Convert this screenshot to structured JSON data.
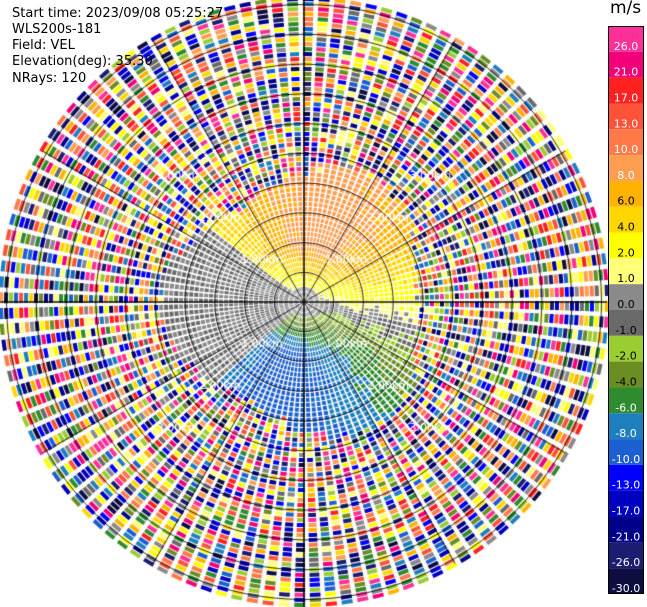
{
  "header": {
    "start_time": "Start time: 2023/09/08 05:25:27",
    "instrument": "WLS200s-181",
    "field": "Field: VEL",
    "elevation": "Elevation(deg): 35.30",
    "nrays": "NRays: 120"
  },
  "colorbar": {
    "title": "m/s",
    "levels": [
      "26.0",
      "21.0",
      "17.0",
      "13.0",
      "10.0",
      "8.0",
      "6.0",
      "4.0",
      "2.0",
      "1.0",
      "0.0",
      "-1.0",
      "-2.0",
      "-4.0",
      "-6.0",
      "-8.0",
      "-10.0",
      "-13.0",
      "-17.0",
      "-21.0",
      "-26.0",
      "-30.0"
    ],
    "colors": [
      "#ff2f9a",
      "#f2007a",
      "#ff2020",
      "#ff5236",
      "#ff7a48",
      "#ff9e50",
      "#ffb300",
      "#ffd600",
      "#ffff00",
      "#ffff7a",
      "#8a8a8a",
      "#6a6a6a",
      "#9acd32",
      "#6b8e23",
      "#2e8b2e",
      "#1e7fbf",
      "#1c5fd0",
      "#0000ff",
      "#0000c0",
      "#00008b",
      "#1c1c70",
      "#0d0d40"
    ]
  },
  "chart_data": {
    "type": "heatmap",
    "projection": "polar (PPI radar scan)",
    "field": "VEL",
    "units": "m/s",
    "nrays": 120,
    "elevation_deg": 35.3,
    "range_rings_km": [
      1.0,
      2.0,
      3.0
    ],
    "range_ring_labels": [
      "1.00km",
      "2.00km",
      "3.00km"
    ],
    "value_range": [
      -30.0,
      26.0
    ],
    "regions": [
      {
        "sector": "north",
        "range_km": [
          0.3,
          2.1
        ],
        "velocity_ms": [
          6.0,
          13.0
        ]
      },
      {
        "sector": "north-east/east",
        "range_km": [
          0.3,
          2.2
        ],
        "velocity_ms": [
          1.0,
          4.0
        ]
      },
      {
        "sector": "south",
        "range_km": [
          0.3,
          1.2
        ],
        "velocity_ms": [
          -10.0,
          -6.0
        ]
      },
      {
        "sector": "south/south-west",
        "range_km": [
          0.3,
          2.3
        ],
        "velocity_ms": [
          -6.0,
          -2.0
        ]
      },
      {
        "sector": "west",
        "range_km": [
          0.3,
          2.1
        ],
        "velocity_ms": [
          -1.0,
          0.0
        ]
      },
      {
        "sector": "all",
        "range_km": [
          2.2,
          5.0
        ],
        "velocity_ms": "noise"
      }
    ]
  }
}
